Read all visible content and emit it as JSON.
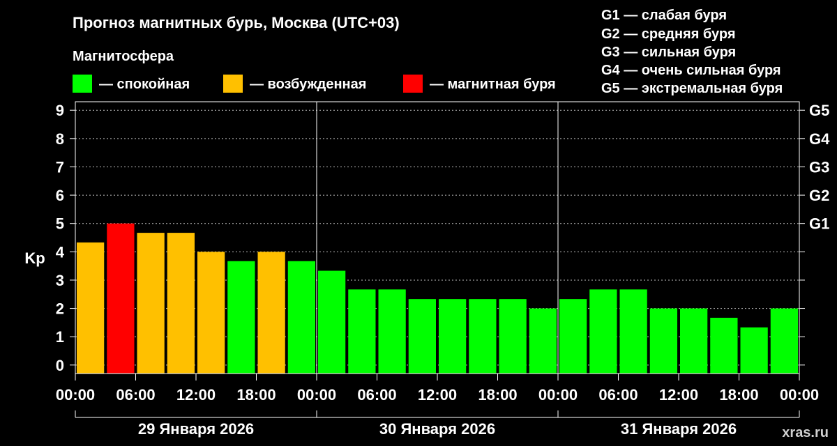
{
  "title": "Прогноз магнитных бурь, Москва (UTC+03)",
  "magnetosphere": {
    "heading": "Магнитосфера",
    "items": [
      {
        "label": "— спокойная",
        "color": "#00ff00"
      },
      {
        "label": "— возбужденная",
        "color": "#ffc000"
      },
      {
        "label": "— магнитная буря",
        "color": "#ff0000"
      }
    ]
  },
  "storm_scale": [
    "G1 — слабая буря",
    "G2 — средняя буря",
    "G3 — сильная буря",
    "G4 — очень сильная буря",
    "G5 — экстремальная буря"
  ],
  "watermark": "xras.ru",
  "chart_data": {
    "type": "bar",
    "ylabel": "Kp",
    "ylim": [
      -0.3,
      9.3
    ],
    "grid": true,
    "yticks": [
      "0",
      "1",
      "2",
      "3",
      "4",
      "5",
      "6",
      "7",
      "8",
      "9"
    ],
    "right_ticks": [
      {
        "kp": 5,
        "label": "G1"
      },
      {
        "kp": 6,
        "label": "G2"
      },
      {
        "kp": 7,
        "label": "G3"
      },
      {
        "kp": 8,
        "label": "G4"
      },
      {
        "kp": 9,
        "label": "G5"
      }
    ],
    "xticks": [
      "00:00",
      "06:00",
      "12:00",
      "18:00",
      "00:00",
      "06:00",
      "12:00",
      "18:00",
      "00:00",
      "06:00",
      "12:00",
      "18:00",
      "00:00"
    ],
    "days": [
      "29 Января 2026",
      "30 Января 2026",
      "31 Января 2026"
    ],
    "values": [
      4.33,
      5.0,
      4.67,
      4.67,
      4.0,
      3.67,
      4.0,
      3.67,
      3.33,
      2.67,
      2.67,
      2.33,
      2.33,
      2.33,
      2.33,
      2.0,
      2.33,
      2.67,
      2.67,
      2.0,
      2.0,
      1.67,
      1.33,
      2.0
    ],
    "colors": [
      "#ffc000",
      "#ff0000",
      "#ffc000",
      "#ffc000",
      "#ffc000",
      "#00ff00",
      "#ffc000",
      "#00ff00",
      "#00ff00",
      "#00ff00",
      "#00ff00",
      "#00ff00",
      "#00ff00",
      "#00ff00",
      "#00ff00",
      "#00ff00",
      "#00ff00",
      "#00ff00",
      "#00ff00",
      "#00ff00",
      "#00ff00",
      "#00ff00",
      "#00ff00",
      "#00ff00"
    ]
  }
}
